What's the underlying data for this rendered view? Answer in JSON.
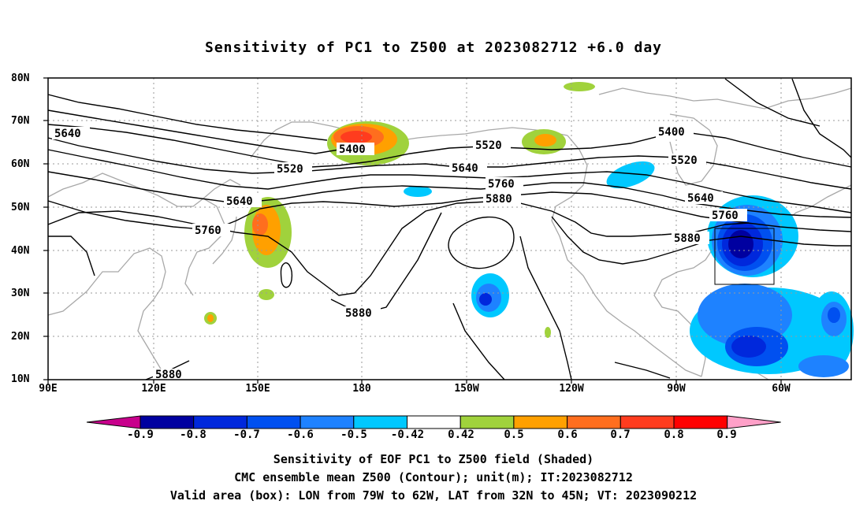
{
  "title": "Sensitivity of PC1 to Z500 at 2023082712 +6.0 day",
  "y_axis_labels": [
    "80N",
    "70N",
    "60N",
    "50N",
    "40N",
    "30N",
    "20N",
    "10N"
  ],
  "x_axis_labels": [
    "90E",
    "120E",
    "150E",
    "180",
    "150W",
    "120W",
    "90W",
    "60W"
  ],
  "contour_labels": [
    "5640",
    "5400",
    "5520",
    "5640",
    "5760",
    "5880",
    "5400",
    "5520",
    "5640",
    "5760",
    "5880",
    "5880",
    "5760",
    "5520",
    "5640",
    "5880"
  ],
  "colorbar": {
    "labels": [
      "-0.9",
      "-0.8",
      "-0.7",
      "-0.6",
      "-0.5",
      "-0.42",
      "0.42",
      "0.5",
      "0.6",
      "0.7",
      "0.8",
      "0.9"
    ],
    "colors": [
      "#c8008c",
      "#0000a0",
      "#0028dc",
      "#0050f0",
      "#1e82ff",
      "#00c8ff",
      "#ffffff",
      "#a0d23c",
      "#ffa000",
      "#ff6e1e",
      "#ff3c1e",
      "#ff0000",
      "#ffa0c8"
    ]
  },
  "footer": {
    "line1": "Sensitivity of EOF PC1 to Z500 field (Shaded)",
    "line2": "CMC ensemble mean Z500 (Contour); unit(m); IT:2023082712",
    "line3": "Valid area (box): LON from 79W to 62W, LAT from 32N to 45N; VT: 2023090212"
  }
}
